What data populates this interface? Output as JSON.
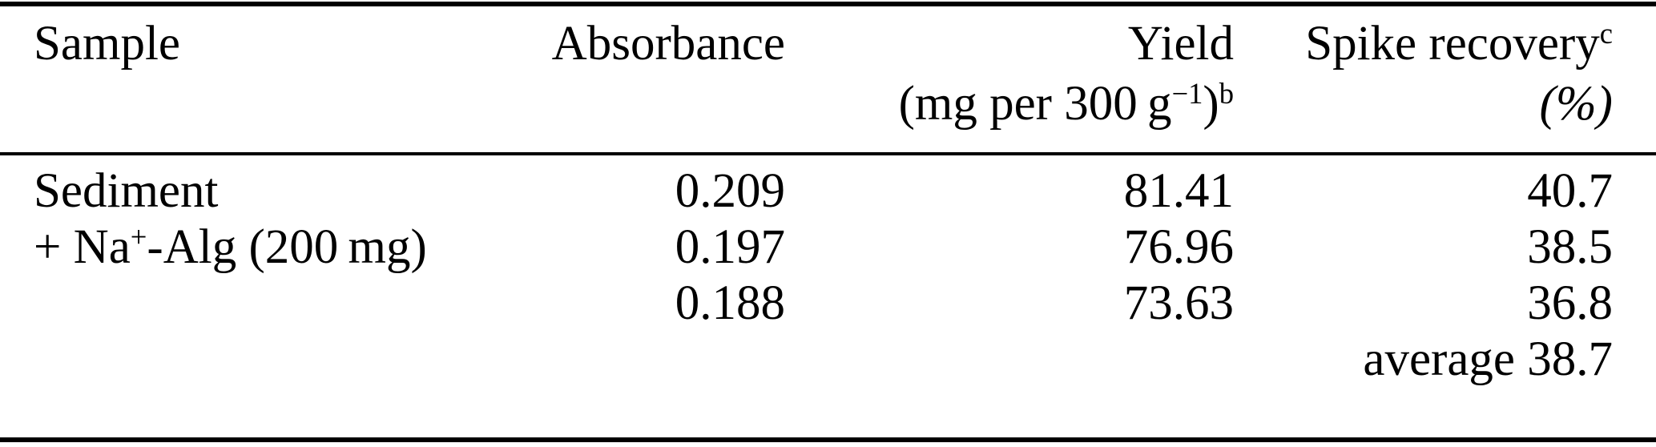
{
  "colors": {
    "background": "#ffffff",
    "text": "#000000",
    "rule": "#000000"
  },
  "table": {
    "header": {
      "sample_label": "Sample",
      "absorbance_label": "Absorbance",
      "yield_label": "Yield",
      "yield_unit_prefix": "(mg per 300 g",
      "yield_unit_exponent": "−1",
      "yield_unit_suffix": ")",
      "yield_footnote": "b",
      "spike_label": "Spike recovery",
      "spike_footnote": "c",
      "spike_unit": "(%)"
    },
    "body": {
      "sample_line1": "Sediment",
      "sample_line2_prefix": "+ Na",
      "sample_line2_sup": "+",
      "sample_line2_suffix": "-Alg (200 mg)",
      "absorbance": [
        "0.209",
        "0.197",
        "0.188"
      ],
      "yield": [
        "81.41",
        "76.96",
        "73.63"
      ],
      "spike": [
        "40.7",
        "38.5",
        "36.8"
      ],
      "average_label": "average",
      "average_value": "38.7"
    }
  }
}
